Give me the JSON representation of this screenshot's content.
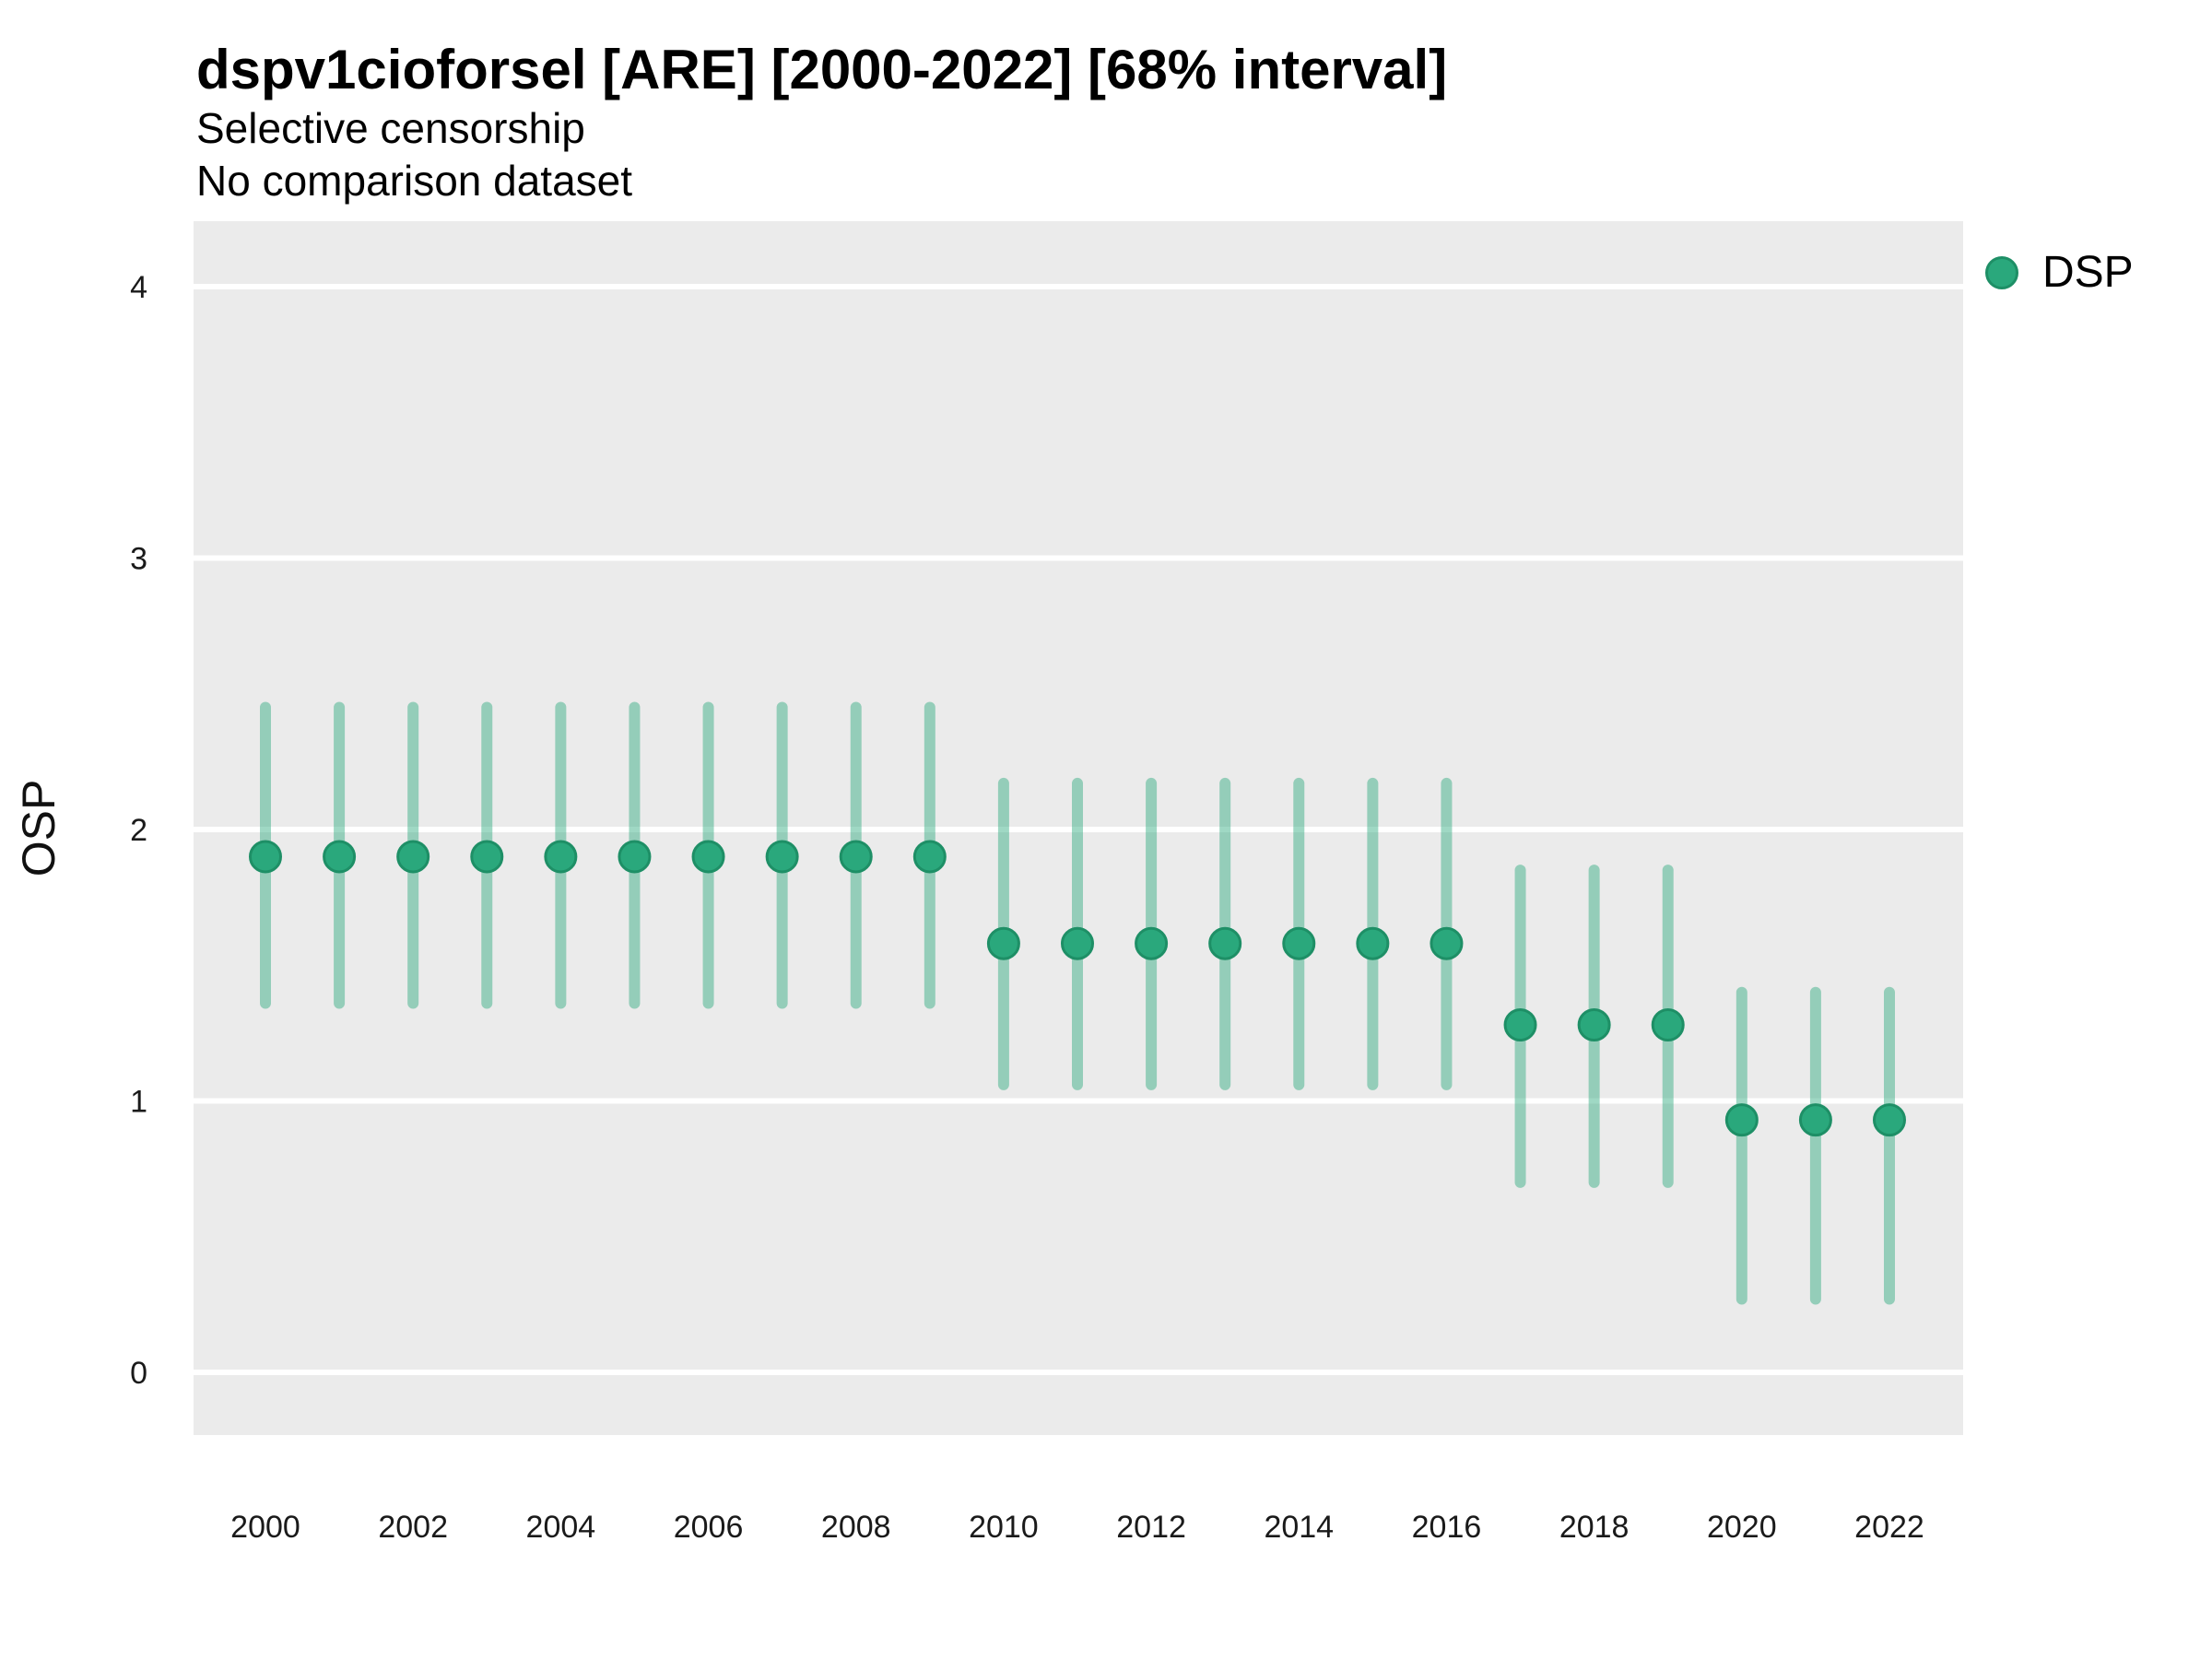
{
  "title": "dspv1cioforsel [ARE] [2000-2022] [68% interval]",
  "subtitle": "Selective censorship",
  "note": "No comparison dataset",
  "legend": {
    "label": "DSP"
  },
  "colors": {
    "point_fill": "#2AA87C",
    "point_stroke": "#1E8F66",
    "interval_line": "rgba(42,168,124,0.45)",
    "panel_background": "#EBEBEB",
    "gridline": "#FFFFFF",
    "axis_text": "#1A1A1A"
  },
  "chart_data": {
    "type": "scatter",
    "title": "dspv1cioforsel [ARE] [2000-2022] [68% interval]",
    "subtitle": "Selective censorship",
    "note": "No comparison dataset",
    "xlabel": "",
    "ylabel": "OSP",
    "interval": "68%",
    "legend_position": "right-top",
    "grid": "horizontal-major-only",
    "ylim": [
      -0.25,
      4.25
    ],
    "xlim": [
      1999,
      2023
    ],
    "yticks": [
      0,
      1,
      2,
      3,
      4
    ],
    "xticks": [
      2000,
      2002,
      2004,
      2006,
      2008,
      2010,
      2012,
      2014,
      2016,
      2018,
      2020,
      2022
    ],
    "x": [
      2000,
      2001,
      2002,
      2003,
      2004,
      2005,
      2006,
      2007,
      2008,
      2009,
      2010,
      2011,
      2012,
      2013,
      2014,
      2015,
      2016,
      2017,
      2018,
      2019,
      2020,
      2021,
      2022
    ],
    "series": [
      {
        "name": "DSP",
        "values": [
          1.9,
          1.9,
          1.9,
          1.9,
          1.9,
          1.9,
          1.9,
          1.9,
          1.9,
          1.9,
          1.58,
          1.58,
          1.58,
          1.58,
          1.58,
          1.58,
          1.58,
          1.28,
          1.28,
          1.28,
          0.93,
          0.93,
          0.93
        ],
        "lower": [
          1.36,
          1.36,
          1.36,
          1.36,
          1.36,
          1.36,
          1.36,
          1.36,
          1.36,
          1.36,
          1.06,
          1.06,
          1.06,
          1.06,
          1.06,
          1.06,
          1.06,
          0.7,
          0.7,
          0.7,
          0.27,
          0.27,
          0.27
        ],
        "upper": [
          2.45,
          2.45,
          2.45,
          2.45,
          2.45,
          2.45,
          2.45,
          2.45,
          2.45,
          2.45,
          2.17,
          2.17,
          2.17,
          2.17,
          2.17,
          2.17,
          2.17,
          1.85,
          1.85,
          1.85,
          1.4,
          1.4,
          1.4
        ]
      }
    ]
  }
}
